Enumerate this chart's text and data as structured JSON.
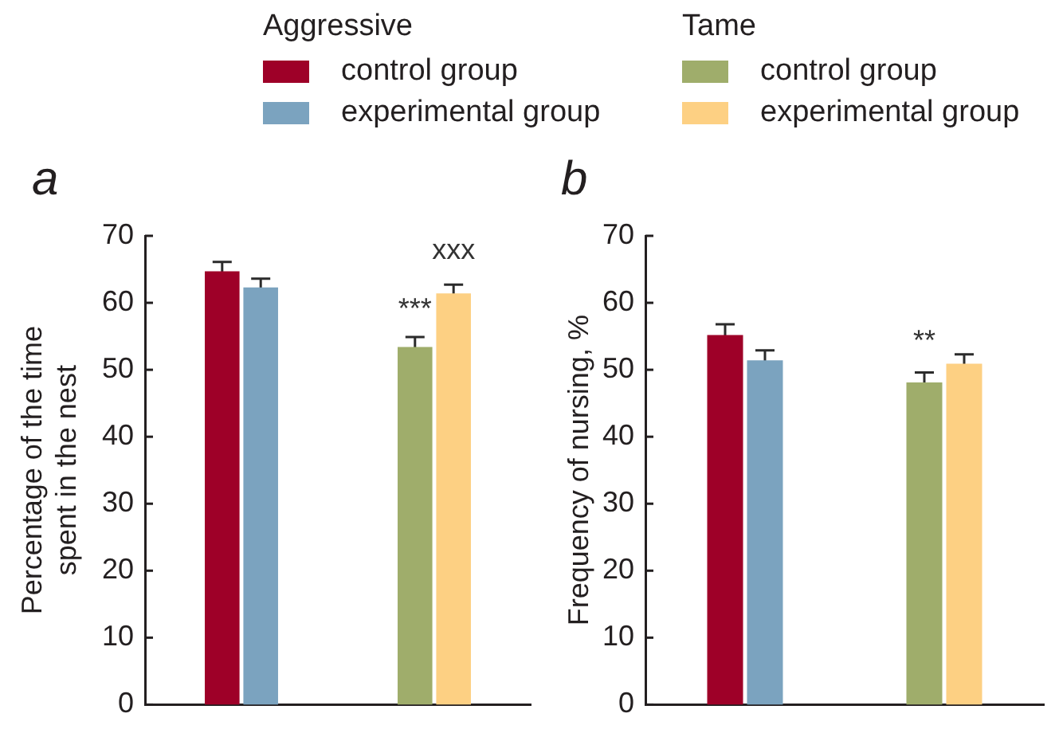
{
  "chart_data": [
    {
      "type": "bar",
      "title": "a",
      "ylabel": "Percentage of the time spent in the nest",
      "categories": [
        null,
        null
      ],
      "series": [
        {
          "name": "control group",
          "color": "#9e0028",
          "values": [
            64.7,
            null
          ],
          "errors": [
            1.4,
            null
          ]
        },
        {
          "name": "experimental group",
          "color": "#7ba3bf",
          "values": [
            62.3,
            null
          ],
          "errors": [
            1.3,
            null
          ]
        },
        {
          "name": "control group",
          "color": "#9fad6b",
          "values": [
            null,
            53.4
          ],
          "errors": [
            null,
            1.5
          ]
        },
        {
          "name": "experimental group",
          "color": "#fdd083",
          "values": [
            null,
            61.4
          ],
          "errors": [
            null,
            1.3
          ]
        }
      ],
      "ylim": [
        0,
        70
      ],
      "yticks": [
        0,
        10,
        20,
        30,
        40,
        50,
        60,
        70
      ],
      "legend": "top",
      "annotations": [
        "Aggressive",
        "Tame",
        "***",
        "xxx"
      ]
    },
    {
      "type": "bar",
      "title": "b",
      "ylabel": "Frequency of nursing, %",
      "categories": [
        null,
        null
      ],
      "series": [
        {
          "color": "#9e0028",
          "values": [
            55.2,
            null
          ],
          "errors": [
            1.6,
            null
          ]
        },
        {
          "color": "#7ba3bf",
          "values": [
            51.4,
            null
          ],
          "errors": [
            1.5,
            null
          ]
        },
        {
          "color": "#9fad6b",
          "values": [
            null,
            48.1
          ],
          "errors": [
            null,
            1.5
          ]
        },
        {
          "color": "#fdd083",
          "values": [
            null,
            50.9
          ],
          "errors": [
            null,
            1.4
          ]
        }
      ],
      "ylim": [
        0,
        70
      ],
      "yticks": [
        0,
        10,
        20,
        30,
        40,
        50,
        60,
        70
      ],
      "annotations": [
        "**"
      ]
    }
  ]
}
